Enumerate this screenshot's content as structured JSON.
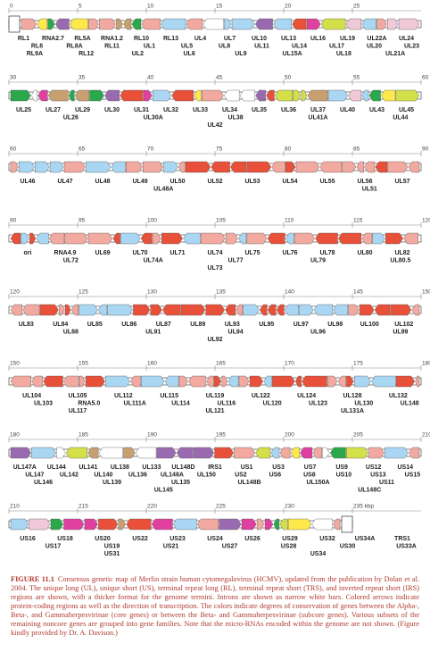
{
  "rows": [
    {
      "ticks": [
        0,
        5,
        10,
        15,
        20,
        25
      ],
      "labels": [
        [
          "RL1",
          "RNA2.7",
          "RL5A",
          "RNA1.2",
          "RL10",
          "RL13",
          "UL4",
          "UL7",
          "UL10",
          "UL13",
          "UL16",
          "UL19",
          "UL22A",
          "UL24"
        ],
        [
          "RL6",
          "RL8A",
          "RL11",
          "UL1",
          "UL5",
          "UL8",
          "UL11",
          "UL14",
          "UL17",
          "UL20",
          "UL23"
        ],
        [
          "RL9A",
          "RL12",
          "UL2",
          "UL6",
          "UL9",
          "UL15A",
          "UL18",
          "UL21A"
        ]
      ]
    },
    {
      "ticks": [
        30,
        35,
        40,
        45,
        50,
        55,
        60
      ],
      "labels": [
        [
          "UL25",
          "UL27",
          "UL29",
          "UL30",
          "UL31",
          "UL32",
          "UL33",
          "UL34",
          "UL35",
          "UL36",
          "UL37",
          "UL40",
          "UL43",
          "UL45"
        ],
        [
          "UL26",
          "UL30A",
          "UL38",
          "UL41A",
          "UL44"
        ],
        [
          "UL42"
        ]
      ]
    },
    {
      "ticks": [
        60,
        65,
        70,
        75,
        80,
        85,
        90
      ],
      "labels": [
        [
          "UL46",
          "UL47",
          "UL48",
          "UL49",
          "UL50",
          "UL52",
          "UL53",
          "UL54",
          "UL55",
          "UL56",
          "UL57"
        ],
        [
          "UL48A",
          "UL51"
        ]
      ]
    },
    {
      "ticks": [
        90,
        95,
        100,
        105,
        110,
        115,
        120
      ],
      "labels": [
        [
          "ori",
          "RNA4.9",
          "UL69",
          "UL70",
          "UL71",
          "UL74",
          "UL75",
          "UL76",
          "UL78",
          "UL80",
          "UL82"
        ],
        [
          "UL72",
          "UL74A",
          "UL77",
          "UL79",
          "UL80.5"
        ],
        [
          "UL73"
        ]
      ]
    },
    {
      "ticks": [
        120,
        125,
        130,
        135,
        140,
        145,
        150
      ],
      "labels": [
        [
          "UL83",
          "UL84",
          "UL85",
          "UL86",
          "UL87",
          "UL89",
          "UL93",
          "UL95",
          "UL97",
          "UL98",
          "UL100",
          "UL102"
        ],
        [
          "UL88",
          "UL91",
          "UL94",
          "UL96",
          "UL99"
        ],
        [
          "UL92"
        ]
      ]
    },
    {
      "ticks": [
        150,
        155,
        160,
        165,
        170,
        175,
        180
      ],
      "labels": [
        [
          "UL104",
          "UL105",
          "UL112",
          "UL115",
          "UL119",
          "UL122",
          "UL124",
          "UL128",
          "UL132"
        ],
        [
          "UL103",
          "RNA5.0",
          "UL111A",
          "UL114",
          "UL116",
          "UL120",
          "UL123",
          "UL130",
          "UL148"
        ],
        [
          "UL117",
          "UL121",
          "UL131A"
        ]
      ]
    },
    {
      "ticks": [
        180,
        185,
        190,
        195,
        200,
        205,
        210
      ],
      "labels": [
        [
          "UL147A",
          "UL144",
          "UL141",
          "UL138",
          "UL133",
          "UL148D",
          "IRS1",
          "US1",
          "US3",
          "US7",
          "US9",
          "US12",
          "US14"
        ],
        [
          "UL147",
          "UL142",
          "UL140",
          "UL136",
          "UL148A",
          "UL150",
          "US2",
          "US6",
          "US8",
          "US10",
          "US13",
          "US15"
        ],
        [
          "UL146",
          "UL139",
          "UL135",
          "UL148B",
          "UL150A",
          "US11"
        ],
        [
          "UL145",
          "UL148C"
        ]
      ]
    },
    {
      "ticks": [
        210,
        215,
        220,
        225,
        230,
        "235 kbp"
      ],
      "labels": [
        [
          "US16",
          "US18",
          "US20",
          "US22",
          "US23",
          "US24",
          "US26",
          "US29",
          "US32",
          "US34A",
          "TRS1"
        ],
        [
          "US17",
          "US19",
          "US21",
          "US27",
          "US28",
          "US30",
          "US33A"
        ],
        [
          "US31",
          "US34"
        ]
      ]
    }
  ],
  "caption": {
    "label": "FIGURE 11.1",
    "text": "Consensus genetic map of Merlin strain human cytomegalovirus (HCMV), updated from the publication by Dolan et al. 2004. The unique long (UL), unique short (US), terminal repeat long (RL), terminal repeat short (TRS), and inverted repeat short (IRS) regions are shown, with a thicker format for the genome termini. Introns are shown as narrow white bars. Colored arrows indicate protein-coding regions as well as the direction of transcription. The colors indicate degrees of conservation of genes between the Alpha-, Beta-, and Gammaherpesvirinae (core genes) or between the Beta- and Gammaherpesvirinae (subcore genes). Various subsets of the remaining noncore genes are grouped into gene families. Note that the micro-RNAs encoded within the genome are not shown. (Figure kindly provided by Dr. A. Davison.)"
  }
}
